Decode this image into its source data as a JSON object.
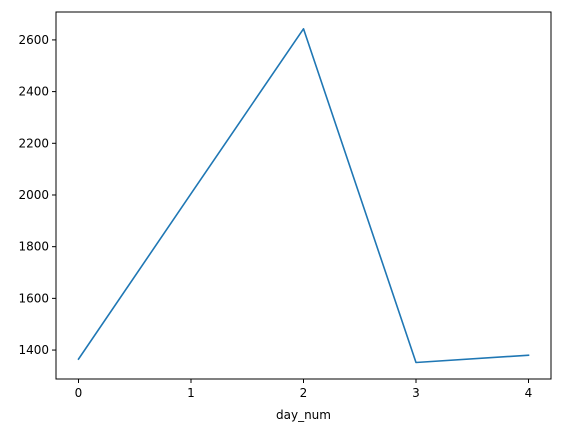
{
  "chart_data": {
    "type": "line",
    "title": "",
    "xlabel": "day_num",
    "ylabel": "",
    "x": [
      0,
      1,
      2,
      3,
      4
    ],
    "series": [
      {
        "values": [
          1365,
          2005,
          2643,
          1352,
          1380
        ],
        "color": "#1f77b4"
      }
    ],
    "xlim": [
      -0.2,
      4.2
    ],
    "ylim": [
      1288,
      2708
    ],
    "xticks": [
      0,
      1,
      2,
      3,
      4
    ],
    "xtick_labels": [
      "0",
      "1",
      "2",
      "3",
      "4"
    ],
    "yticks": [
      1400,
      1600,
      1800,
      2000,
      2200,
      2400,
      2600
    ],
    "ytick_labels": [
      "1400",
      "1600",
      "1800",
      "2000",
      "2200",
      "2400",
      "2600"
    ],
    "grid": false,
    "legend": false
  }
}
